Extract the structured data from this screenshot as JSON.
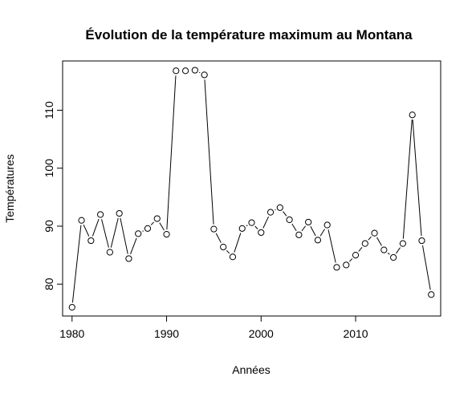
{
  "chart_data": {
    "type": "line",
    "title": "Évolution de la température maximum au Montana",
    "xlabel": "Années",
    "ylabel": "Températures",
    "xlim": [
      1979,
      2019
    ],
    "ylim": [
      74.5,
      118.5
    ],
    "x_ticks": [
      1980,
      1990,
      2000,
      2010
    ],
    "y_ticks": [
      80,
      90,
      100,
      110
    ],
    "grid": false,
    "line_style": "b",
    "series": [
      {
        "x": [
          1980,
          1981,
          1982,
          1983,
          1984,
          1985,
          1986,
          1987,
          1988,
          1989,
          1990,
          1991,
          1992,
          1993,
          1994,
          1995,
          1996,
          1997,
          1998,
          1999,
          2000,
          2001,
          2002,
          2003,
          2004,
          2005,
          2006,
          2007,
          2008,
          2009,
          2010,
          2011,
          2012,
          2013,
          2014,
          2015,
          2016,
          2017,
          2018
        ],
        "y": [
          76.0,
          91.0,
          87.5,
          92.0,
          85.5,
          92.2,
          84.4,
          88.7,
          89.6,
          91.3,
          88.6,
          116.8,
          116.8,
          116.9,
          116.1,
          89.5,
          86.4,
          84.7,
          89.6,
          90.6,
          88.9,
          92.4,
          93.2,
          91.1,
          88.5,
          90.7,
          87.6,
          90.2,
          82.9,
          83.3,
          85.0,
          87.0,
          88.8,
          85.9,
          84.6,
          87.0,
          109.2,
          87.5,
          78.2
        ]
      }
    ]
  }
}
